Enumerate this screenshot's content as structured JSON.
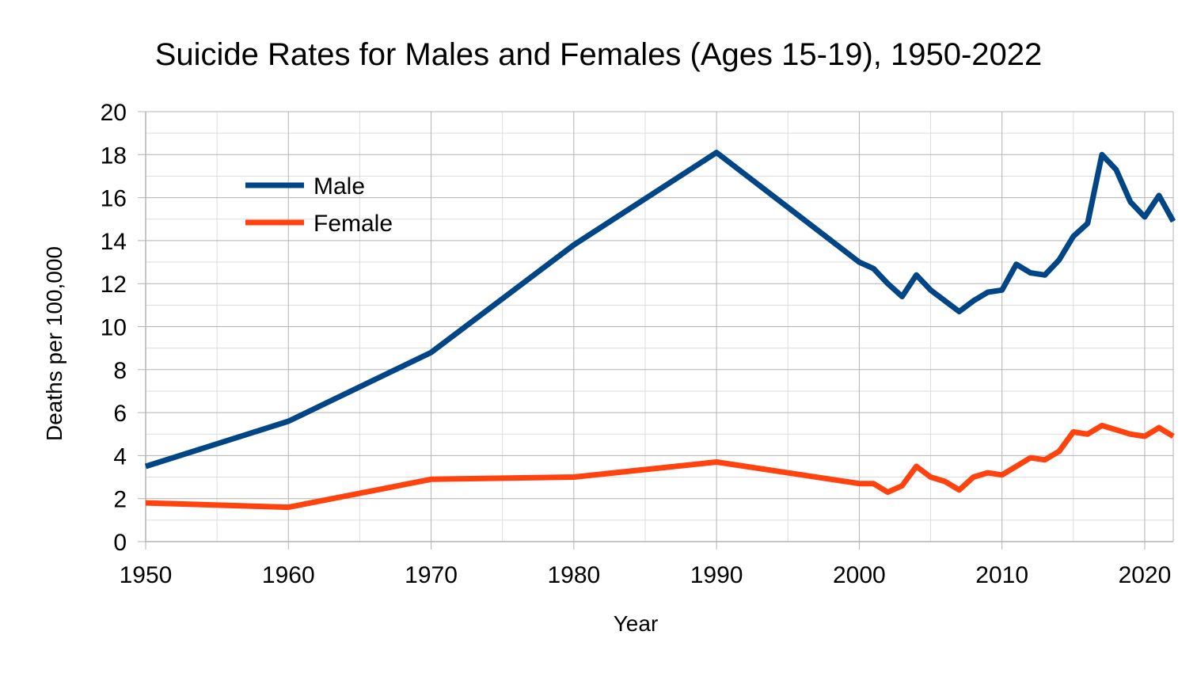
{
  "chart_data": {
    "type": "line",
    "title": "Suicide Rates for Males and Females (Ages 15-19), 1950-2022",
    "xlabel": "Year",
    "ylabel": "Deaths per 100,000",
    "xlim": [
      1950,
      2022
    ],
    "ylim": [
      0,
      20
    ],
    "x_ticks": [
      "1950",
      "1960",
      "1970",
      "1980",
      "1990",
      "2000",
      "2010",
      "2020"
    ],
    "y_ticks": [
      "0",
      "2",
      "4",
      "6",
      "8",
      "10",
      "12",
      "14",
      "16",
      "18",
      "20"
    ],
    "grid": true,
    "legend_position": "top-left",
    "series": [
      {
        "name": "Male",
        "color": "#004586",
        "x": [
          1950,
          1960,
          1970,
          1980,
          1990,
          2000,
          2001,
          2002,
          2003,
          2004,
          2005,
          2006,
          2007,
          2008,
          2009,
          2010,
          2011,
          2012,
          2013,
          2014,
          2015,
          2016,
          2017,
          2018,
          2019,
          2020,
          2021,
          2022
        ],
        "values": [
          3.5,
          5.6,
          8.8,
          13.8,
          18.1,
          13.0,
          12.7,
          12.0,
          11.4,
          12.4,
          11.7,
          11.2,
          10.7,
          11.2,
          11.6,
          11.7,
          12.9,
          12.5,
          12.4,
          13.1,
          14.2,
          14.8,
          18.0,
          17.3,
          15.8,
          15.1,
          16.1,
          14.9
        ]
      },
      {
        "name": "Female",
        "color": "#ff420e",
        "x": [
          1950,
          1960,
          1970,
          1980,
          1990,
          2000,
          2001,
          2002,
          2003,
          2004,
          2005,
          2006,
          2007,
          2008,
          2009,
          2010,
          2011,
          2012,
          2013,
          2014,
          2015,
          2016,
          2017,
          2018,
          2019,
          2020,
          2021,
          2022
        ],
        "values": [
          1.8,
          1.6,
          2.9,
          3.0,
          3.7,
          2.7,
          2.7,
          2.3,
          2.6,
          3.5,
          3.0,
          2.8,
          2.4,
          3.0,
          3.2,
          3.1,
          3.5,
          3.9,
          3.8,
          4.2,
          5.1,
          5.0,
          5.4,
          5.2,
          5.0,
          4.9,
          5.3,
          4.9
        ]
      }
    ]
  }
}
